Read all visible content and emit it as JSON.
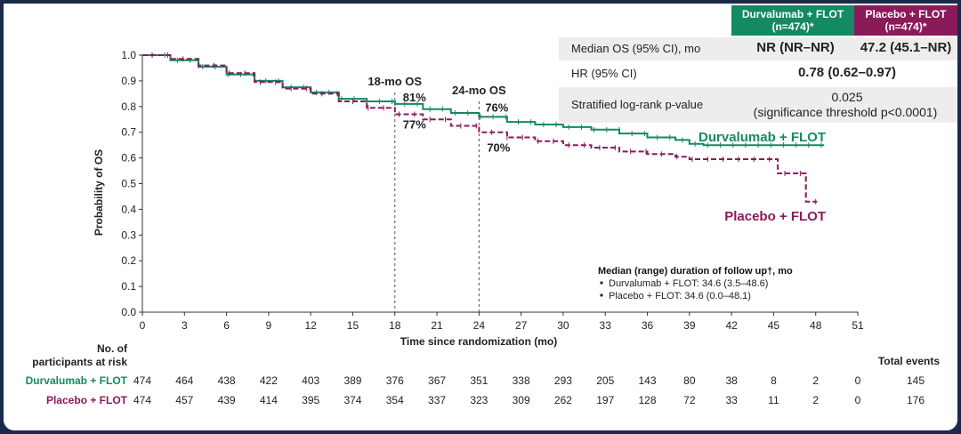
{
  "stats_table": {
    "col_durva": "Durvalumab + FLOT",
    "col_durva_n": "(n=474)*",
    "col_placebo": "Placebo + FLOT",
    "col_placebo_n": "(n=474)*",
    "row1_label": "Median OS (95% CI), mo",
    "row1_durva": "NR (NR–NR)",
    "row1_placebo": "47.2 (45.1–NR)",
    "row2_label": "HR (95% CI)",
    "row2_value": "0.78 (0.62–0.97)",
    "row3_label": "Stratified log-rank p-value",
    "row3_value": "0.025",
    "row3_note": "(significance threshold p<0.0001)"
  },
  "followup": {
    "title": "Median (range) duration of follow up†, mo",
    "items": [
      "Durvalumab + FLOT: 34.6 (3.5–48.6)",
      "Placebo + FLOT: 34.6 (0.0–48.1)"
    ]
  },
  "risk_table": {
    "header_line1": "No. of",
    "header_line2": "participants at risk",
    "total_events_label": "Total events",
    "rows": [
      {
        "label": "Durvalumab + FLOT",
        "values": [
          474,
          464,
          438,
          422,
          403,
          389,
          376,
          367,
          351,
          338,
          293,
          205,
          143,
          80,
          38,
          8,
          2,
          0
        ],
        "total": 145
      },
      {
        "label": "Placebo + FLOT",
        "values": [
          474,
          457,
          439,
          414,
          395,
          374,
          354,
          337,
          323,
          309,
          262,
          197,
          128,
          72,
          33,
          11,
          2,
          0
        ],
        "total": 176
      }
    ]
  },
  "colors": {
    "durva": "#138a62",
    "placebo": "#8a1a5a",
    "frame": "#1b2a4a"
  },
  "chart_data": {
    "type": "line",
    "title": "",
    "xlabel": "Time since randomization (mo)",
    "ylabel": "Probability of OS",
    "xlim": [
      0,
      51
    ],
    "ylim": [
      0,
      1.0
    ],
    "x_ticks": [
      0,
      3,
      6,
      9,
      12,
      15,
      18,
      21,
      24,
      27,
      30,
      33,
      36,
      39,
      42,
      45,
      48,
      51
    ],
    "y_ticks": [
      "0.0",
      "0.1",
      "0.2",
      "0.3",
      "0.4",
      "0.5",
      "0.6",
      "0.7",
      "0.8",
      "0.9",
      "1.0"
    ],
    "series": [
      {
        "name": "Durvalumab + FLOT",
        "color": "#138a62",
        "x": [
          0,
          2,
          4,
          6,
          8,
          10,
          12,
          14,
          16,
          18,
          20,
          22,
          24,
          26,
          28,
          30,
          32,
          34,
          36,
          38,
          39,
          40,
          42,
          44,
          46,
          48.6
        ],
        "y": [
          1.0,
          0.98,
          0.955,
          0.925,
          0.9,
          0.875,
          0.855,
          0.83,
          0.82,
          0.81,
          0.79,
          0.775,
          0.76,
          0.74,
          0.73,
          0.72,
          0.71,
          0.695,
          0.68,
          0.67,
          0.655,
          0.65,
          0.65,
          0.65,
          0.65,
          0.65
        ]
      },
      {
        "name": "Placebo + FLOT",
        "color": "#8a1a5a",
        "x": [
          0,
          2,
          4,
          6,
          8,
          10,
          12,
          14,
          16,
          18,
          20,
          22,
          24,
          26,
          28,
          30,
          32,
          34,
          36,
          38,
          39,
          40,
          42,
          44,
          45,
          45.3,
          47,
          47.3,
          48.1
        ],
        "y": [
          1.0,
          0.985,
          0.96,
          0.93,
          0.895,
          0.87,
          0.85,
          0.82,
          0.795,
          0.77,
          0.75,
          0.725,
          0.7,
          0.68,
          0.665,
          0.65,
          0.64,
          0.625,
          0.615,
          0.605,
          0.595,
          0.595,
          0.595,
          0.595,
          0.595,
          0.54,
          0.54,
          0.43,
          0.43
        ]
      }
    ],
    "annotations": [
      {
        "text": "18-mo OS",
        "x": 18
      },
      {
        "text": "24-mo OS",
        "x": 24
      },
      {
        "text": "81%",
        "x": 18,
        "y": 0.81,
        "series": "Durvalumab + FLOT"
      },
      {
        "text": "77%",
        "x": 18,
        "y": 0.77,
        "series": "Placebo + FLOT"
      },
      {
        "text": "76%",
        "x": 24,
        "y": 0.76,
        "series": "Durvalumab + FLOT"
      },
      {
        "text": "70%",
        "x": 24,
        "y": 0.7,
        "series": "Placebo + FLOT"
      }
    ],
    "legend": [
      {
        "text": "Durvalumab + FLOT",
        "series": "Durvalumab + FLOT"
      },
      {
        "text": "Placebo + FLOT",
        "series": "Placebo + FLOT"
      }
    ]
  }
}
